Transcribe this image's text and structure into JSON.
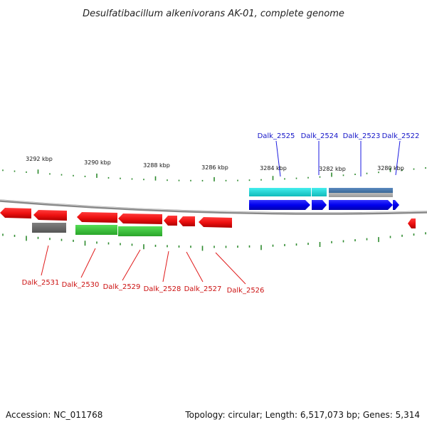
{
  "title": "Desulfatibacillum alkenivorans AK-01, complete genome",
  "footer": {
    "accession": "Accession: NC_011768",
    "summary": "Topology: circular; Length: 6,517,073 bp; Genes: 5,314"
  },
  "scale": {
    "unit": "kbp",
    "labels": [
      "3292 kbp",
      "3290 kbp",
      "3288 kbp",
      "3286 kbp",
      "3284 kbp",
      "3282 kbp",
      "3280 kbp"
    ]
  },
  "colors": {
    "backbone": "#8a8a8a",
    "tick": "#2e8b2e",
    "forward_label": "#1515c8",
    "reverse_label": "#cc1111",
    "leader_forward": "#1a1ae0",
    "leader_reverse": "#e01a1a"
  },
  "genes": {
    "forward_labels": [
      "Dalk_2525",
      "Dalk_2524",
      "Dalk_2523",
      "Dalk_2522"
    ],
    "reverse_labels": [
      "Dalk_2531",
      "Dalk_2530",
      "Dalk_2529",
      "Dalk_2528",
      "Dalk_2527",
      "Dalk_2526"
    ]
  },
  "tracks": {
    "forward_cds_color": "#0a0af0",
    "forward_feature_colors": [
      "#22dddd",
      "#4a7ab0",
      "#aaaaaa"
    ],
    "reverse_cds_color": "#f01010",
    "reverse_feature_colors": [
      "#44cc44",
      "#6e6e6e"
    ]
  }
}
